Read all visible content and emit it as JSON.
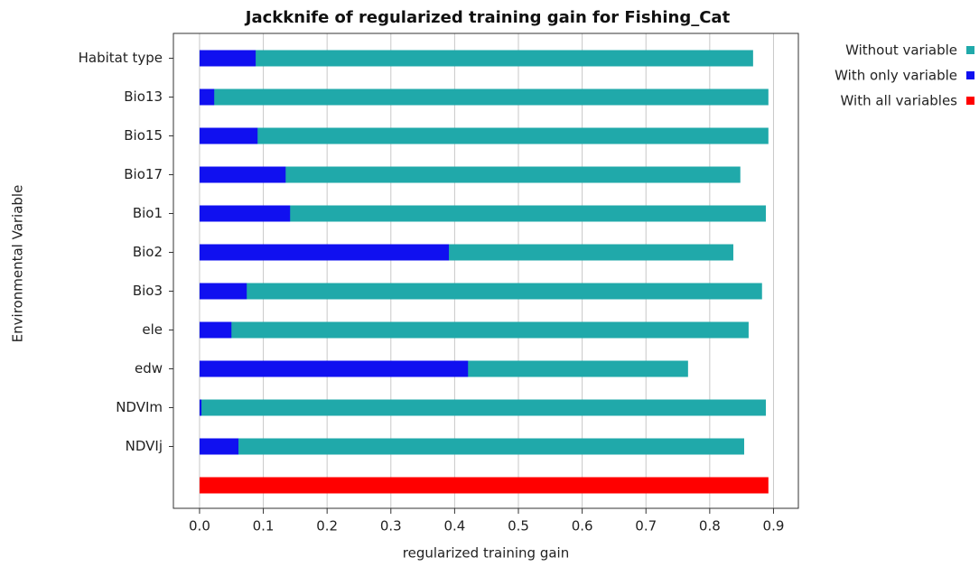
{
  "chart_data": {
    "type": "bar",
    "orientation": "horizontal",
    "title": "Jackknife of regularized training gain for Fishing_Cat",
    "x_label": "regularized training gain",
    "y_label": "Environmental Variable",
    "categories": [
      "Habitat type",
      "Bio13",
      "Bio15",
      "Bio17",
      "Bio1",
      "Bio2",
      "Bio3",
      "ele",
      "edw",
      "NDVIm",
      "NDVIj",
      null
    ],
    "series": [
      {
        "name": "Without variable",
        "color": "#20a9aa",
        "values": [
          0.868,
          0.892,
          0.892,
          0.848,
          0.888,
          0.837,
          0.882,
          0.861,
          0.766,
          0.888,
          0.854,
          null
        ]
      },
      {
        "name": "With only variable",
        "color": "#1010f0",
        "values": [
          0.088,
          0.023,
          0.091,
          0.135,
          0.142,
          0.391,
          0.074,
          0.05,
          0.421,
          0.003,
          0.061,
          null
        ]
      },
      {
        "name": "With all variables",
        "color": "#ff0000",
        "values": [
          null,
          null,
          null,
          null,
          null,
          null,
          null,
          null,
          null,
          null,
          null,
          0.892
        ]
      }
    ],
    "xlim": [
      -0.041,
      0.939
    ],
    "xticks": [
      {
        "value": 0,
        "label": "0.0"
      },
      0.1,
      0.2,
      0.3,
      0.4,
      0.5,
      0.6,
      0.7,
      0.8,
      0.9
    ],
    "grid": true,
    "legend": "right"
  }
}
